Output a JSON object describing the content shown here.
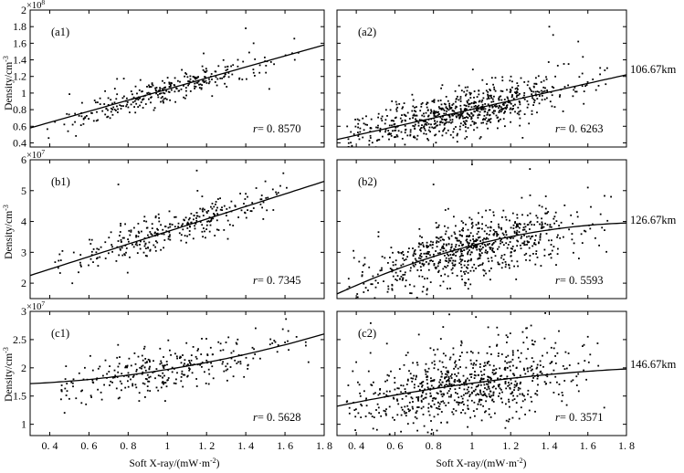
{
  "figure": {
    "y_axis_label": "Density/cm",
    "y_axis_label_sup": "-3",
    "x_axis_label": "Soft X-ray/(mW·m",
    "x_axis_label_sup": "-2",
    "x_axis_label_end": ")"
  },
  "chart_data": [
    {
      "panel": "(a1)",
      "type": "scatter",
      "row": 0,
      "col": 0,
      "xlim": [
        0.3,
        1.8
      ],
      "ylim": [
        0.35,
        2.0
      ],
      "yticks": [
        0.4,
        0.6,
        0.8,
        1,
        1.2,
        1.4,
        1.6,
        1.8,
        2
      ],
      "sci_base": "×10",
      "sci_exp": "8",
      "r_label": "r",
      "r_value": "= 0. 8570",
      "altitude": "",
      "fit": {
        "model": "linear",
        "x": [
          0.3,
          1.8
        ],
        "y": [
          0.58,
          1.58
        ]
      },
      "scatter": {
        "n": 300,
        "seed": 11,
        "x_min": 0.35,
        "x_max": 1.7,
        "x_center": 1.0,
        "x_spread": 0.28,
        "noise": 0.085,
        "noise_scale": 0.09
      },
      "outliers": [
        [
          1.4,
          1.78
        ],
        [
          1.44,
          1.6
        ],
        [
          1.36,
          1.4
        ],
        [
          1.65,
          1.4
        ],
        [
          1.52,
          1.05
        ]
      ],
      "tick_labels_x": false
    },
    {
      "panel": "(a2)",
      "type": "scatter",
      "row": 0,
      "col": 1,
      "xlim": [
        0.3,
        1.8
      ],
      "ylim": [
        0.35,
        2.0
      ],
      "yticks": [],
      "sci_base": "",
      "sci_exp": "",
      "r_label": "r",
      "r_value": "= 0. 6263",
      "altitude": "106.67km",
      "fit": {
        "model": "linear",
        "x": [
          0.3,
          1.8
        ],
        "y": [
          0.44,
          1.22
        ]
      },
      "scatter": {
        "n": 750,
        "seed": 23,
        "x_min": 0.35,
        "x_max": 1.72,
        "x_center": 0.95,
        "x_spread": 0.28,
        "noise": 0.14,
        "noise_scale": 0.11
      },
      "outliers": [
        [
          1.4,
          1.8
        ],
        [
          1.42,
          1.7
        ],
        [
          1.55,
          1.62
        ],
        [
          1.5,
          1.35
        ],
        [
          1.7,
          1.3
        ]
      ],
      "tick_labels_x": false
    },
    {
      "panel": "(b1)",
      "type": "scatter",
      "row": 1,
      "col": 0,
      "xlim": [
        0.3,
        1.8
      ],
      "ylim": [
        1.5,
        6.0
      ],
      "yticks": [
        2,
        3,
        4,
        5,
        6
      ],
      "sci_base": "×10",
      "sci_exp": "7",
      "r_label": "r",
      "r_value": "= 0. 7345",
      "altitude": "",
      "fit": {
        "model": "linear",
        "x": [
          0.3,
          1.8
        ],
        "y": [
          2.25,
          5.3
        ]
      },
      "scatter": {
        "n": 300,
        "seed": 37,
        "x_min": 0.4,
        "x_max": 1.7,
        "x_center": 1.0,
        "x_spread": 0.27,
        "noise": 0.3,
        "noise_scale": 0.25
      },
      "outliers": [
        [
          1.15,
          5.65
        ],
        [
          1.4,
          4.9
        ],
        [
          1.5,
          5.3
        ],
        [
          0.75,
          5.2
        ]
      ],
      "tick_labels_x": false
    },
    {
      "panel": "(b2)",
      "type": "scatter",
      "row": 1,
      "col": 1,
      "xlim": [
        0.3,
        1.8
      ],
      "ylim": [
        1.5,
        6.0
      ],
      "yticks": [],
      "sci_base": "",
      "sci_exp": "",
      "r_label": "r",
      "r_value": "= 0. 5593",
      "altitude": "126.67km",
      "fit": {
        "model": "quadratic",
        "x": [
          0.3,
          1.05,
          1.8
        ],
        "y": [
          1.65,
          3.3,
          3.95
        ]
      },
      "scatter": {
        "n": 750,
        "seed": 53,
        "x_min": 0.35,
        "x_max": 1.72,
        "x_center": 0.98,
        "x_spread": 0.28,
        "noise": 0.5,
        "noise_scale": 0.3
      },
      "outliers": [
        [
          1.0,
          5.85
        ],
        [
          0.8,
          5.2
        ],
        [
          1.3,
          5.7
        ],
        [
          1.6,
          5.1
        ],
        [
          1.72,
          4.8
        ]
      ],
      "tick_labels_x": false
    },
    {
      "panel": "(c1)",
      "type": "scatter",
      "row": 2,
      "col": 0,
      "xlim": [
        0.3,
        1.8
      ],
      "ylim": [
        0.8,
        3.0
      ],
      "yticks": [
        1,
        1.5,
        2,
        2.5,
        3
      ],
      "sci_base": "×10",
      "sci_exp": "7",
      "r_label": "r",
      "r_value": "= 0. 5628",
      "altitude": "",
      "fit": {
        "model": "quadratic",
        "x": [
          0.3,
          1.05,
          1.8
        ],
        "y": [
          1.72,
          2.0,
          2.6
        ]
      },
      "scatter": {
        "n": 300,
        "seed": 71,
        "x_min": 0.45,
        "x_max": 1.72,
        "x_center": 1.0,
        "x_spread": 0.27,
        "noise": 0.2,
        "noise_scale": 0.15
      },
      "outliers": [
        [
          1.45,
          2.7
        ],
        [
          1.6,
          2.45
        ],
        [
          1.72,
          2.1
        ],
        [
          0.5,
          1.45
        ]
      ],
      "tick_labels_x": true,
      "xticks": [
        "0. 4",
        "0. 6",
        "0. 8",
        "1",
        "1. 2",
        "1. 4",
        "1. 6",
        "1. 8"
      ]
    },
    {
      "panel": "(c2)",
      "type": "scatter",
      "row": 2,
      "col": 1,
      "xlim": [
        0.3,
        1.8
      ],
      "ylim": [
        0.8,
        3.0
      ],
      "yticks": [],
      "sci_base": "",
      "sci_exp": "",
      "r_label": "r",
      "r_value": "= 0. 3571",
      "altitude": "146.67km",
      "fit": {
        "model": "quadratic",
        "x": [
          0.3,
          1.05,
          1.8
        ],
        "y": [
          1.32,
          1.75,
          1.98
        ]
      },
      "scatter": {
        "n": 750,
        "seed": 89,
        "x_min": 0.35,
        "x_max": 1.72,
        "x_center": 0.98,
        "x_spread": 0.28,
        "noise": 0.32,
        "noise_scale": 0.2
      },
      "outliers": [
        [
          1.02,
          2.9
        ],
        [
          1.28,
          2.7
        ],
        [
          1.45,
          2.65
        ],
        [
          1.6,
          2.55
        ],
        [
          0.4,
          2.1
        ]
      ],
      "tick_labels_x": true,
      "xticks": [
        "0. 4",
        "0. 6",
        "0. 8",
        "1",
        "1. 2",
        "1. 4",
        "1. 6",
        "1. 8"
      ]
    }
  ]
}
